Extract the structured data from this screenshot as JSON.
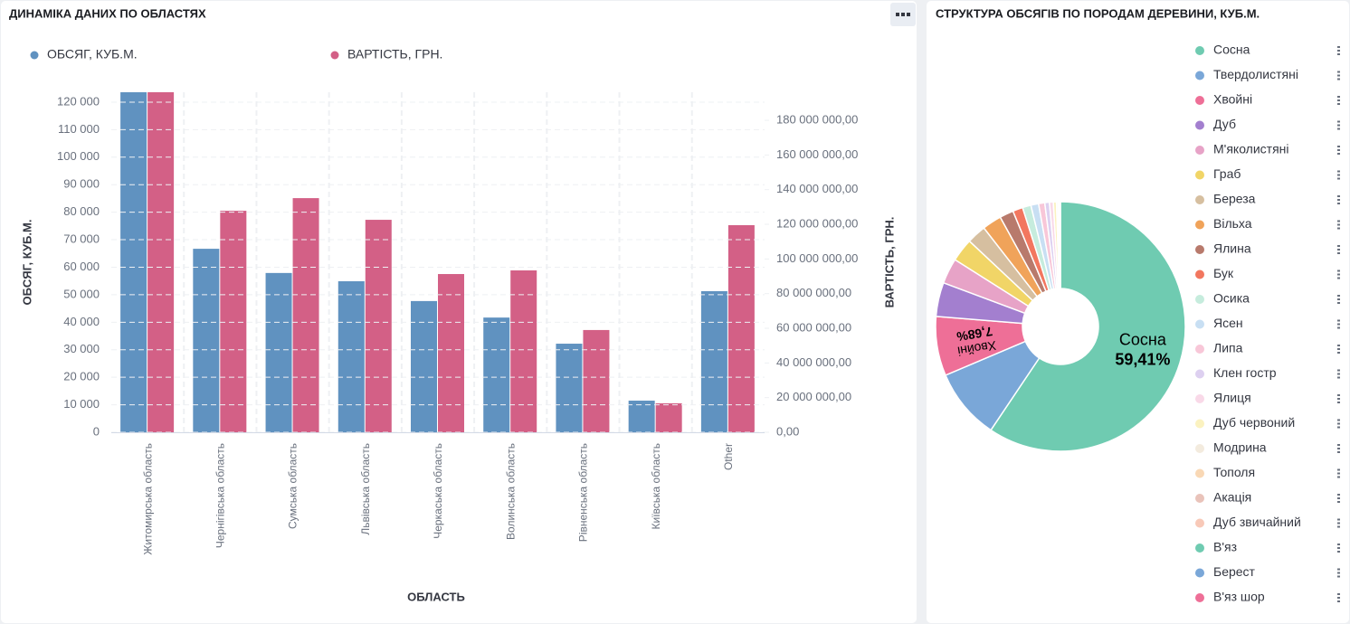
{
  "chart_data": [
    {
      "type": "bar",
      "title": "ДИНАМІКА ДАНИХ ПО ОБЛАСТЯХ",
      "x_label": "ОБЛАСТЬ",
      "y_label": "ОБСЯГ, КУБ.М.",
      "y2_label": "ВАРТІСТЬ, ГРН.",
      "categories": [
        "Житомирська область",
        "Чернігівська область",
        "Сумська область",
        "Львівська область",
        "Черкаська область",
        "Волинська область",
        "Рівненська область",
        "Київська область",
        "Other"
      ],
      "series": [
        {
          "name": "ОБСЯГ, КУБ.М.",
          "color": "#6092c0",
          "values": [
            123600,
            66700,
            57900,
            54900,
            47700,
            41700,
            32200,
            11500,
            51300
          ]
        },
        {
          "name": "ВАРТІСТЬ, ГРН.",
          "color": "#d36086",
          "axis": "y2",
          "values": [
            196200000,
            127800000,
            135100000,
            122600000,
            91300000,
            93400000,
            59000000,
            16700000,
            119500000
          ]
        }
      ],
      "ylim": [
        0,
        123600
      ],
      "yticks": [
        0,
        {
          "value": 10000,
          "label": "10 000"
        },
        {
          "value": 20000,
          "label": "20 000"
        },
        {
          "value": 30000,
          "label": "30 000"
        },
        {
          "value": 40000,
          "label": "40 000"
        },
        {
          "value": 50000,
          "label": "50 000"
        },
        {
          "value": 60000,
          "label": "60 000"
        },
        {
          "value": 70000,
          "label": "70 000"
        },
        {
          "value": 80000,
          "label": "80 000"
        },
        {
          "value": 90000,
          "label": "90 000"
        },
        {
          "value": 100000,
          "label": "100 000"
        },
        {
          "value": 110000,
          "label": "110 000"
        },
        {
          "value": 120000,
          "label": "120 000"
        }
      ],
      "y2lim": [
        0,
        196200000
      ],
      "y2ticks": [
        {
          "value": 0,
          "label": "0,00"
        },
        {
          "value": 20000000,
          "label": "20 000 000,00"
        },
        {
          "value": 40000000,
          "label": "40 000 000,00"
        },
        {
          "value": 60000000,
          "label": "60 000 000,00"
        },
        {
          "value": 80000000,
          "label": "80 000 000,00"
        },
        {
          "value": 100000000,
          "label": "100 000 000,00"
        },
        {
          "value": 120000000,
          "label": "120 000 000,00"
        },
        {
          "value": 140000000,
          "label": "140 000 000,00"
        },
        {
          "value": 160000000,
          "label": "160 000 000,00"
        },
        {
          "value": 180000000,
          "label": "180 000 000,00"
        }
      ],
      "grid": true,
      "legend": "top"
    },
    {
      "type": "pie",
      "title": "СТРУКТУРА ОБСЯГІВ ПО ПОРОДАМ ДЕРЕВИНИ, КУБ.М.",
      "donut": true,
      "legend": "right",
      "categories": [
        "Сосна",
        "Твердолистяні",
        "Хвойні",
        "Дуб",
        "М'яколистяні",
        "Граб",
        "Береза",
        "Вільха",
        "Ялина",
        "Бук",
        "Осика",
        "Ясен",
        "Липа",
        "Клен гостр",
        "Ялиця",
        "Дуб червоний",
        "Модрина",
        "Тополя",
        "Акація",
        "Дуб звичайний",
        "В'яз",
        "Берест",
        "В'яз шор"
      ],
      "values": [
        59.41,
        9.2,
        7.68,
        4.4,
        3.3,
        3.0,
        2.5,
        2.5,
        1.8,
        1.3,
        1.1,
        1.0,
        0.8,
        0.6,
        0.5,
        0.4,
        0.2,
        0.1,
        0.06,
        0.05,
        0.04,
        0.03,
        0.03
      ],
      "value_labels": [
        "59,41%",
        null,
        "7,68%",
        null,
        null,
        null,
        null,
        null,
        null,
        null,
        null,
        null,
        null,
        null,
        null,
        null,
        null,
        null,
        null,
        null,
        null,
        null,
        null
      ],
      "colors": [
        "#6fcbb1",
        "#7aa7d8",
        "#ee6f97",
        "#a37fcf",
        "#e7a3c7",
        "#f1d567",
        "#d6bfa0",
        "#f0a35a",
        "#b87a6c",
        "#f2775f",
        "#c6ecdd",
        "#c8dff3",
        "#f8c7d8",
        "#ddd0f0",
        "#f9d9e8",
        "#fbf2c0",
        "#f3ebde",
        "#f9d8b5",
        "#e9c3ba",
        "#f8c9b8",
        "#6fcbb1",
        "#7aa7d8",
        "#ee6f97"
      ]
    }
  ]
}
